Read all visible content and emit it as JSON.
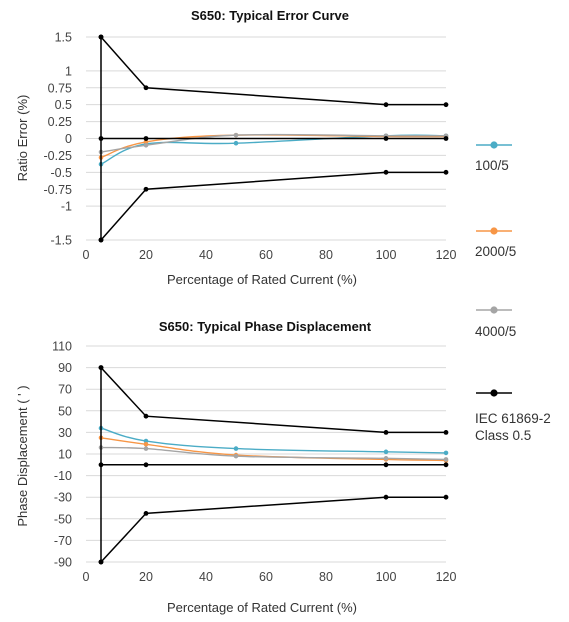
{
  "colors": {
    "s100": "#4bacc6",
    "s2000": "#f79646",
    "s4000": "#a5a5a5",
    "iec": "#000000",
    "grid": "#d9d9d9"
  },
  "legend": [
    {
      "label": "100/5",
      "color": "#4bacc6"
    },
    {
      "label": "2000/5",
      "color": "#f79646"
    },
    {
      "label": "4000/5",
      "color": "#a5a5a5"
    },
    {
      "label": "IEC 61869-2",
      "label2": "Class 0.5",
      "color": "#000000"
    }
  ],
  "chart_data": [
    {
      "type": "scatter",
      "title": "S650: Typical Error Curve",
      "xlabel": "Percentage of Rated Current (%)",
      "ylabel": "Ratio Error (%)",
      "xlim": [
        0,
        120
      ],
      "ylim": [
        -1.5,
        1.5
      ],
      "xticks": [
        0,
        20,
        40,
        60,
        80,
        100,
        120
      ],
      "yticks": [
        1.5,
        1,
        0.75,
        0.5,
        0.25,
        0,
        -0.25,
        -0.5,
        -0.75,
        -1,
        -1.5
      ],
      "ytick_labels": [
        "1.5",
        "1",
        "0.75",
        "0.5",
        "0.25",
        "0",
        "-0.25",
        "-0.5",
        "-0.75",
        "-1",
        "-1.5"
      ],
      "grid": true,
      "series": [
        {
          "name": "100/5",
          "key": "s100",
          "x": [
            5,
            20,
            50,
            100,
            120
          ],
          "y": [
            -0.38,
            -0.08,
            -0.07,
            0.04,
            0.04
          ]
        },
        {
          "name": "2000/5",
          "key": "s2000",
          "x": [
            5,
            20,
            50,
            100,
            120
          ],
          "y": [
            -0.28,
            -0.05,
            0.05,
            0.03,
            0.03
          ]
        },
        {
          "name": "4000/5",
          "key": "s4000",
          "x": [
            5,
            20,
            50,
            100,
            120
          ],
          "y": [
            -0.2,
            -0.1,
            0.05,
            0.04,
            0.04
          ]
        },
        {
          "name": "IEC 61869-2 Class 0.5",
          "key": "iec",
          "lines": [
            {
              "x": [
                5,
                20,
                100,
                120
              ],
              "y": [
                1.5,
                0.75,
                0.5,
                0.5
              ]
            },
            {
              "x": [
                5,
                20,
                100,
                120
              ],
              "y": [
                0,
                0,
                0,
                0
              ]
            },
            {
              "x": [
                5,
                20,
                100,
                120
              ],
              "y": [
                -1.5,
                -0.75,
                -0.5,
                -0.5
              ]
            },
            {
              "x": [
                5,
                5
              ],
              "y": [
                1.5,
                -1.5
              ]
            }
          ]
        }
      ]
    },
    {
      "type": "scatter",
      "title": "S650: Typical Phase Displacement",
      "xlabel": "Percentage of Rated Current (%)",
      "ylabel": "Phase Displacement ( ' )",
      "xlim": [
        0,
        120
      ],
      "ylim": [
        -90,
        110
      ],
      "xticks": [
        0,
        20,
        40,
        60,
        80,
        100,
        120
      ],
      "yticks": [
        110,
        90,
        70,
        50,
        30,
        10,
        -10,
        -30,
        -50,
        -70,
        -90
      ],
      "ytick_labels": [
        "110",
        "90",
        "70",
        "50",
        "30",
        "10",
        "-10",
        "-30",
        "-50",
        "-70",
        "-90"
      ],
      "grid": true,
      "series": [
        {
          "name": "100/5",
          "key": "s100",
          "x": [
            5,
            20,
            50,
            100,
            120
          ],
          "y": [
            34,
            22,
            15,
            12,
            11
          ]
        },
        {
          "name": "2000/5",
          "key": "s2000",
          "x": [
            5,
            20,
            50,
            100,
            120
          ],
          "y": [
            25,
            19,
            9,
            5,
            4
          ]
        },
        {
          "name": "4000/5",
          "key": "s4000",
          "x": [
            5,
            20,
            50,
            100,
            120
          ],
          "y": [
            16,
            15,
            8,
            6,
            5
          ]
        },
        {
          "name": "IEC 61869-2 Class 0.5",
          "key": "iec",
          "lines": [
            {
              "x": [
                5,
                20,
                100,
                120
              ],
              "y": [
                90,
                45,
                30,
                30
              ]
            },
            {
              "x": [
                5,
                20,
                100,
                120
              ],
              "y": [
                0,
                0,
                0,
                0
              ]
            },
            {
              "x": [
                5,
                20,
                100,
                120
              ],
              "y": [
                -90,
                -45,
                -30,
                -30
              ]
            },
            {
              "x": [
                5,
                5
              ],
              "y": [
                90,
                -90
              ]
            }
          ]
        }
      ]
    }
  ]
}
